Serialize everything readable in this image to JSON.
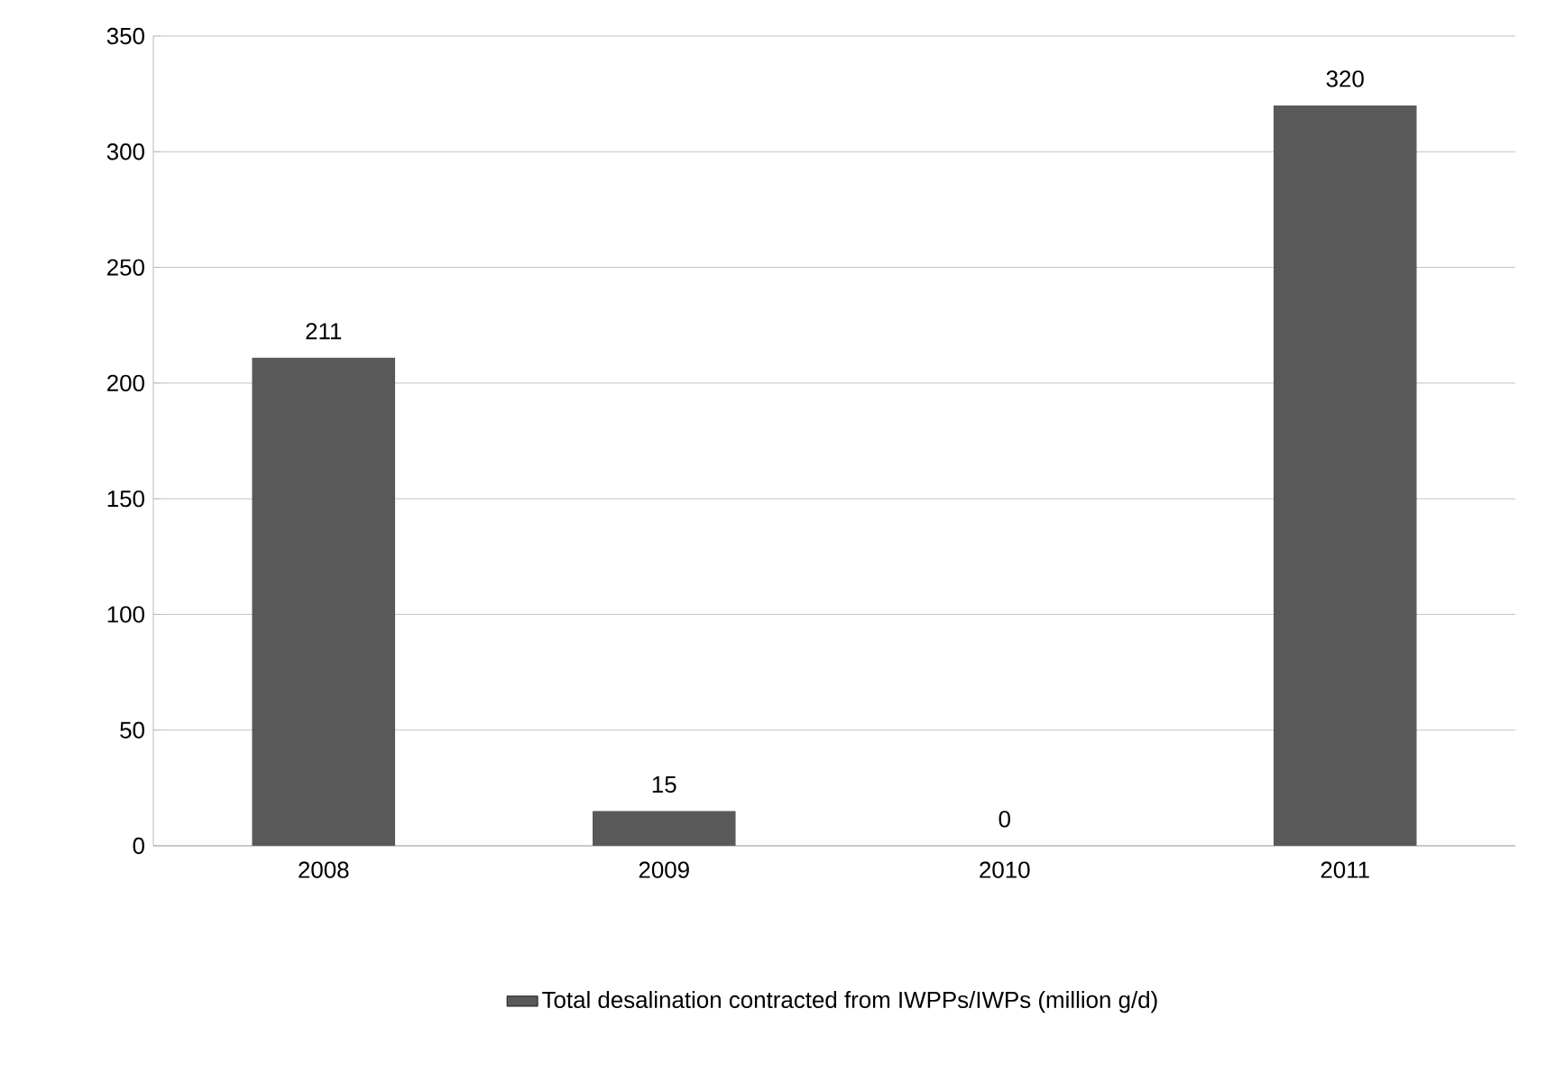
{
  "chart_data": {
    "type": "bar",
    "categories": [
      "2008",
      "2009",
      "2010",
      "2011"
    ],
    "series": [
      {
        "name": "Total desalination contracted from IWPPs/IWPs (million g/d)",
        "color": "#595959",
        "values": [
          211,
          15,
          0,
          320
        ]
      }
    ],
    "ylim": [
      0,
      350
    ],
    "yticks": [
      0,
      50,
      100,
      150,
      200,
      250,
      300,
      350
    ],
    "grid": "y",
    "legend": "bottom",
    "data_labels": true
  }
}
